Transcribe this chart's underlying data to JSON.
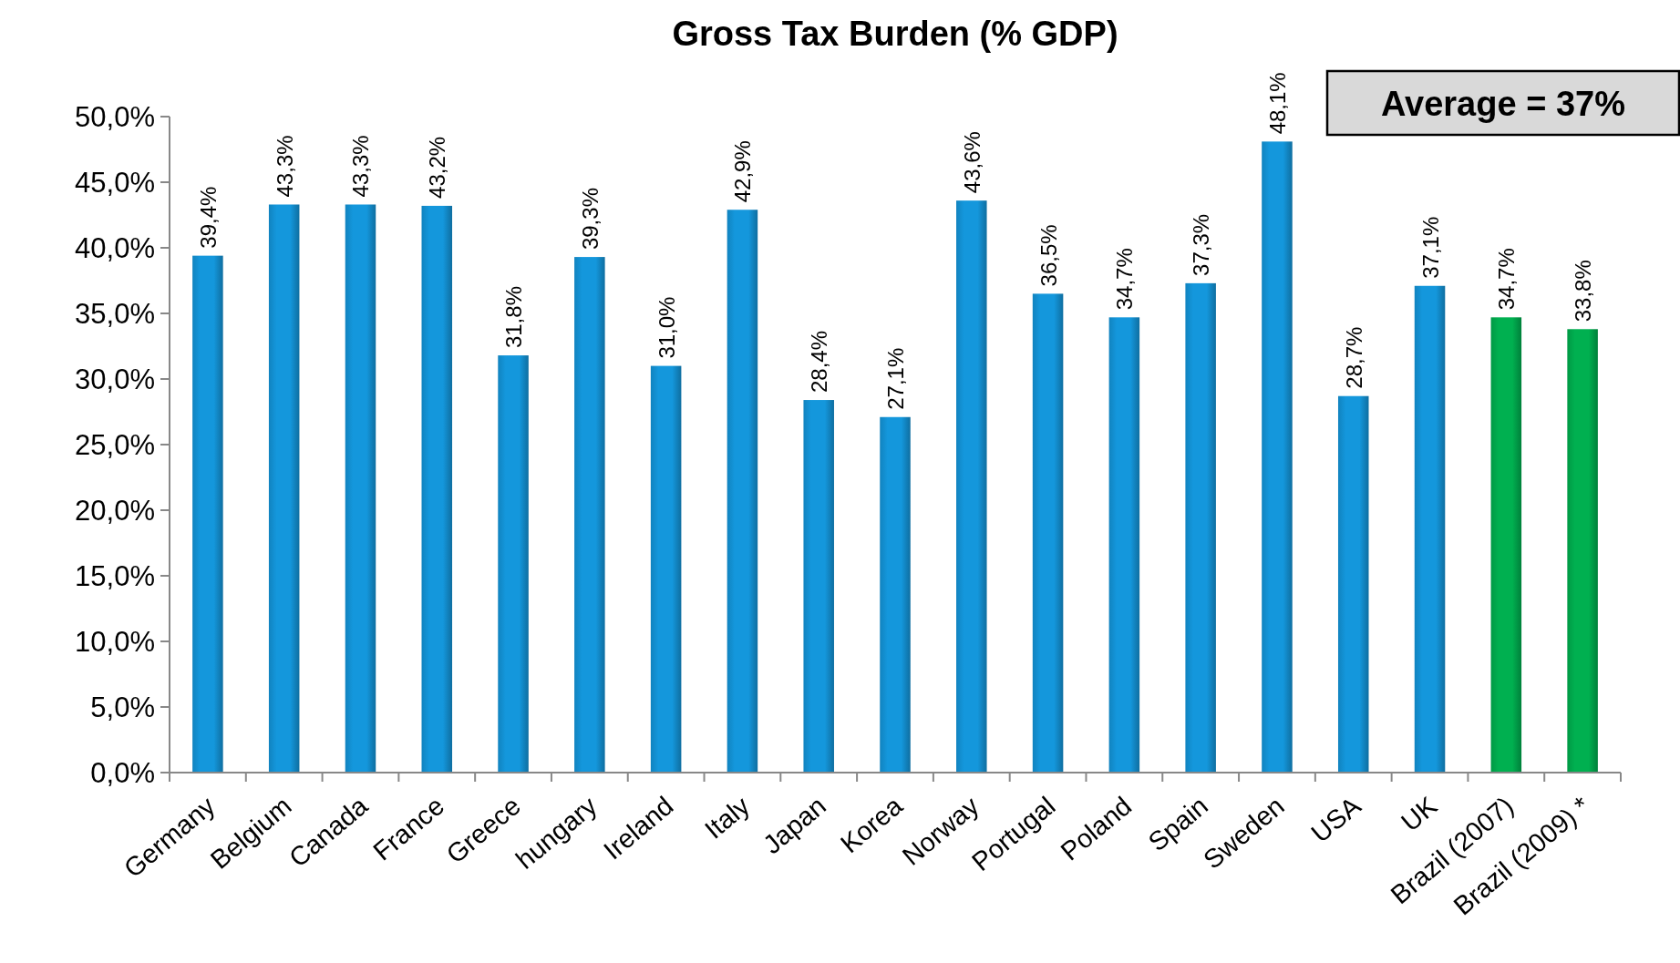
{
  "chart_data": {
    "type": "bar",
    "title": "Gross Tax Burden (% GDP)",
    "categories": [
      "Germany",
      "Belgium",
      "Canada",
      "France",
      "Greece",
      "hungary",
      "Ireland",
      "Italy",
      "Japan",
      "Korea",
      "Norway",
      "Portugal",
      "Poland",
      "Spain",
      "Sweden",
      "USA",
      "UK",
      "Brazil (2007)",
      "Brazil (2009) *"
    ],
    "values": [
      39.4,
      43.3,
      43.3,
      43.2,
      31.8,
      39.3,
      31.0,
      42.9,
      28.4,
      27.1,
      43.6,
      36.5,
      34.7,
      37.3,
      48.1,
      28.7,
      37.1,
      34.7,
      33.8
    ],
    "colors": [
      "#1497dc",
      "#1497dc",
      "#1497dc",
      "#1497dc",
      "#1497dc",
      "#1497dc",
      "#1497dc",
      "#1497dc",
      "#1497dc",
      "#1497dc",
      "#1497dc",
      "#1497dc",
      "#1497dc",
      "#1497dc",
      "#1497dc",
      "#1497dc",
      "#1497dc",
      "#00b050",
      "#00b050"
    ],
    "value_labels": [
      "39,4%",
      "43,3%",
      "43,3%",
      "43,2%",
      "31,8%",
      "39,3%",
      "31,0%",
      "42,9%",
      "28,4%",
      "27,1%",
      "43,6%",
      "36,5%",
      "34,7%",
      "37,3%",
      "48,1%",
      "28,7%",
      "37,1%",
      "34,7%",
      "33,8%"
    ],
    "ylim": [
      0,
      50
    ],
    "yticks": [
      {
        "value": 0,
        "label": "0,0%"
      },
      {
        "value": 5,
        "label": "5,0%"
      },
      {
        "value": 10,
        "label": "10,0%"
      },
      {
        "value": 15,
        "label": "15,0%"
      },
      {
        "value": 20,
        "label": "20,0%"
      },
      {
        "value": 25,
        "label": "25,0%"
      },
      {
        "value": 30,
        "label": "30,0%"
      },
      {
        "value": 35,
        "label": "35,0%"
      },
      {
        "value": 40,
        "label": "40,0%"
      },
      {
        "value": 45,
        "label": "45,0%"
      },
      {
        "value": 50,
        "label": "50,0%"
      }
    ],
    "annotations": [
      "Average = 37%"
    ]
  }
}
